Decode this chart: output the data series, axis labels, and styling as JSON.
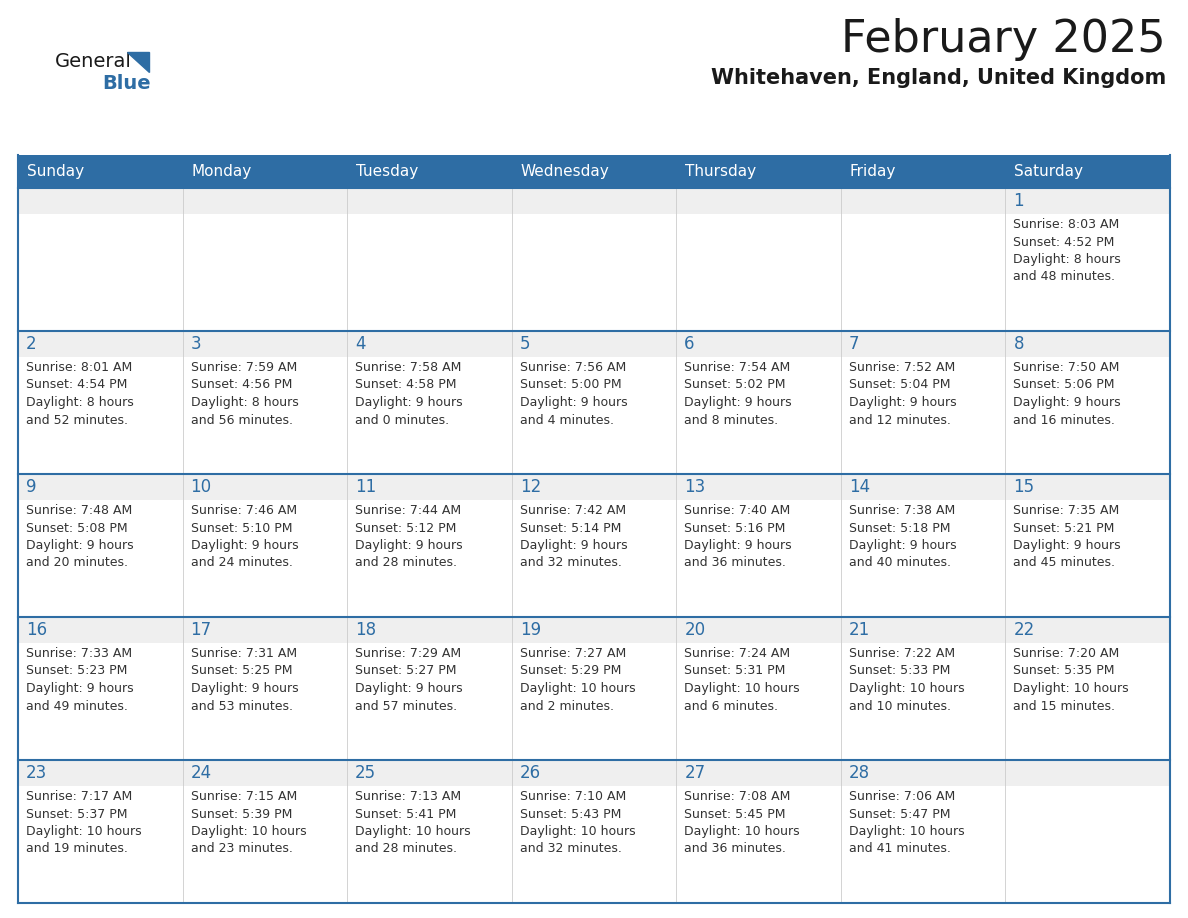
{
  "title": "February 2025",
  "subtitle": "Whitehaven, England, United Kingdom",
  "header_bg": "#2E6DA4",
  "header_text": "#FFFFFF",
  "cell_top_bg": "#EFEFEF",
  "cell_body_bg": "#FFFFFF",
  "border_color": "#2E6DA4",
  "day_number_color": "#2E6DA4",
  "text_color": "#333333",
  "days_of_week": [
    "Sunday",
    "Monday",
    "Tuesday",
    "Wednesday",
    "Thursday",
    "Friday",
    "Saturday"
  ],
  "weeks": [
    [
      {
        "day": "",
        "info": ""
      },
      {
        "day": "",
        "info": ""
      },
      {
        "day": "",
        "info": ""
      },
      {
        "day": "",
        "info": ""
      },
      {
        "day": "",
        "info": ""
      },
      {
        "day": "",
        "info": ""
      },
      {
        "day": "1",
        "info": "Sunrise: 8:03 AM\nSunset: 4:52 PM\nDaylight: 8 hours\nand 48 minutes."
      }
    ],
    [
      {
        "day": "2",
        "info": "Sunrise: 8:01 AM\nSunset: 4:54 PM\nDaylight: 8 hours\nand 52 minutes."
      },
      {
        "day": "3",
        "info": "Sunrise: 7:59 AM\nSunset: 4:56 PM\nDaylight: 8 hours\nand 56 minutes."
      },
      {
        "day": "4",
        "info": "Sunrise: 7:58 AM\nSunset: 4:58 PM\nDaylight: 9 hours\nand 0 minutes."
      },
      {
        "day": "5",
        "info": "Sunrise: 7:56 AM\nSunset: 5:00 PM\nDaylight: 9 hours\nand 4 minutes."
      },
      {
        "day": "6",
        "info": "Sunrise: 7:54 AM\nSunset: 5:02 PM\nDaylight: 9 hours\nand 8 minutes."
      },
      {
        "day": "7",
        "info": "Sunrise: 7:52 AM\nSunset: 5:04 PM\nDaylight: 9 hours\nand 12 minutes."
      },
      {
        "day": "8",
        "info": "Sunrise: 7:50 AM\nSunset: 5:06 PM\nDaylight: 9 hours\nand 16 minutes."
      }
    ],
    [
      {
        "day": "9",
        "info": "Sunrise: 7:48 AM\nSunset: 5:08 PM\nDaylight: 9 hours\nand 20 minutes."
      },
      {
        "day": "10",
        "info": "Sunrise: 7:46 AM\nSunset: 5:10 PM\nDaylight: 9 hours\nand 24 minutes."
      },
      {
        "day": "11",
        "info": "Sunrise: 7:44 AM\nSunset: 5:12 PM\nDaylight: 9 hours\nand 28 minutes."
      },
      {
        "day": "12",
        "info": "Sunrise: 7:42 AM\nSunset: 5:14 PM\nDaylight: 9 hours\nand 32 minutes."
      },
      {
        "day": "13",
        "info": "Sunrise: 7:40 AM\nSunset: 5:16 PM\nDaylight: 9 hours\nand 36 minutes."
      },
      {
        "day": "14",
        "info": "Sunrise: 7:38 AM\nSunset: 5:18 PM\nDaylight: 9 hours\nand 40 minutes."
      },
      {
        "day": "15",
        "info": "Sunrise: 7:35 AM\nSunset: 5:21 PM\nDaylight: 9 hours\nand 45 minutes."
      }
    ],
    [
      {
        "day": "16",
        "info": "Sunrise: 7:33 AM\nSunset: 5:23 PM\nDaylight: 9 hours\nand 49 minutes."
      },
      {
        "day": "17",
        "info": "Sunrise: 7:31 AM\nSunset: 5:25 PM\nDaylight: 9 hours\nand 53 minutes."
      },
      {
        "day": "18",
        "info": "Sunrise: 7:29 AM\nSunset: 5:27 PM\nDaylight: 9 hours\nand 57 minutes."
      },
      {
        "day": "19",
        "info": "Sunrise: 7:27 AM\nSunset: 5:29 PM\nDaylight: 10 hours\nand 2 minutes."
      },
      {
        "day": "20",
        "info": "Sunrise: 7:24 AM\nSunset: 5:31 PM\nDaylight: 10 hours\nand 6 minutes."
      },
      {
        "day": "21",
        "info": "Sunrise: 7:22 AM\nSunset: 5:33 PM\nDaylight: 10 hours\nand 10 minutes."
      },
      {
        "day": "22",
        "info": "Sunrise: 7:20 AM\nSunset: 5:35 PM\nDaylight: 10 hours\nand 15 minutes."
      }
    ],
    [
      {
        "day": "23",
        "info": "Sunrise: 7:17 AM\nSunset: 5:37 PM\nDaylight: 10 hours\nand 19 minutes."
      },
      {
        "day": "24",
        "info": "Sunrise: 7:15 AM\nSunset: 5:39 PM\nDaylight: 10 hours\nand 23 minutes."
      },
      {
        "day": "25",
        "info": "Sunrise: 7:13 AM\nSunset: 5:41 PM\nDaylight: 10 hours\nand 28 minutes."
      },
      {
        "day": "26",
        "info": "Sunrise: 7:10 AM\nSunset: 5:43 PM\nDaylight: 10 hours\nand 32 minutes."
      },
      {
        "day": "27",
        "info": "Sunrise: 7:08 AM\nSunset: 5:45 PM\nDaylight: 10 hours\nand 36 minutes."
      },
      {
        "day": "28",
        "info": "Sunrise: 7:06 AM\nSunset: 5:47 PM\nDaylight: 10 hours\nand 41 minutes."
      },
      {
        "day": "",
        "info": ""
      }
    ]
  ]
}
